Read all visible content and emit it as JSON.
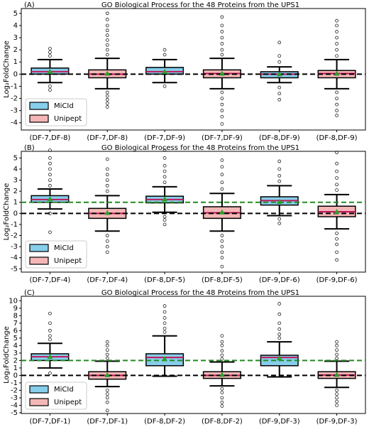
{
  "chart_data": [
    {
      "type": "box",
      "panel_label": "(A)",
      "title": "GO Biological Process for the 48 Proteins from the UPS1",
      "y_label": "Log₂FoldChange",
      "categories": [
        "(DF-7,DF-8)",
        "(DF-7,DF-8)",
        "(DF-7,DF-9)",
        "(DF-7,DF-9)",
        "(DF-8,DF-9)",
        "(DF-8,DF-9)"
      ],
      "series": [
        {
          "name": "MiCId",
          "color": "#87ceeb"
        },
        {
          "name": "Unipept",
          "color": "#f4b6b6"
        }
      ],
      "median_color": "#c2185b",
      "mean_color": "#2ca02c",
      "legend": "lower left",
      "ylim": [
        -4.6,
        5.4
      ],
      "yticks": [
        -4,
        -3,
        -2,
        -1,
        0,
        1,
        2,
        3,
        4,
        5
      ],
      "hlines": [
        {
          "value": 0,
          "color": "#000000"
        }
      ],
      "boxes": [
        {
          "series": 0,
          "whislo": -0.7,
          "q1": 0,
          "med": 0.2,
          "q3": 0.5,
          "whishi": 1.2,
          "mean": 0.2,
          "outliers": [
            1.5,
            1.8,
            2.1,
            -1.0,
            -1.3
          ]
        },
        {
          "series": 1,
          "whislo": -1.2,
          "q1": -0.3,
          "med": 0,
          "q3": 0.35,
          "whishi": 1.3,
          "mean": 0.05,
          "outliers": [
            1.6,
            2,
            2.4,
            2.8,
            3.2,
            3.6,
            4,
            4.5,
            5,
            -1.5,
            -1.8,
            -2.1,
            -2.4,
            -2.7
          ]
        },
        {
          "series": 0,
          "whislo": -0.7,
          "q1": 0,
          "med": 0.2,
          "q3": 0.55,
          "whishi": 1.2,
          "mean": 0.2,
          "outliers": [
            1.6,
            2.0,
            -1.0
          ]
        },
        {
          "series": 1,
          "whislo": -1.2,
          "q1": -0.3,
          "med": 0.05,
          "q3": 0.35,
          "whishi": 1.3,
          "mean": 0.05,
          "outliers": [
            1.6,
            2,
            2.5,
            3,
            3.5,
            4,
            4.7,
            -1.5,
            -2,
            -2.5,
            -3,
            -3.5,
            -4.1
          ]
        },
        {
          "series": 0,
          "whislo": -0.7,
          "q1": -0.3,
          "med": 0,
          "q3": 0.2,
          "whishi": 0.6,
          "mean": 0,
          "outliers": [
            1,
            1.5,
            2.6,
            -1.1,
            -1.6,
            -2.1
          ]
        },
        {
          "series": 1,
          "whislo": -1.2,
          "q1": -0.3,
          "med": 0.05,
          "q3": 0.3,
          "whishi": 1.2,
          "mean": 0.05,
          "outliers": [
            1.5,
            2,
            2.5,
            3,
            3.5,
            4,
            4.4,
            -1.5,
            -2,
            -2.5,
            -3,
            -3.4
          ]
        }
      ]
    },
    {
      "type": "box",
      "panel_label": "(B)",
      "title": "GO Biological Process for the 48 Proteins from the UPS1",
      "y_label": "Log₂FoldChange",
      "categories": [
        "(DF-7,DF-4)",
        "(DF-7,DF-4)",
        "(DF-8,DF-5)",
        "(DF-8,DF-5)",
        "(DF-9,DF-6)",
        "(DF-9,DF-6)"
      ],
      "series": [
        {
          "name": "MiCId",
          "color": "#87ceeb"
        },
        {
          "name": "Unipept",
          "color": "#f4b6b6"
        }
      ],
      "median_color": "#c2185b",
      "mean_color": "#2ca02c",
      "legend": "lower left",
      "ylim": [
        -5.3,
        5.6
      ],
      "yticks": [
        -5,
        -4,
        -3,
        -2,
        -1,
        0,
        1,
        2,
        3,
        4,
        5
      ],
      "hlines": [
        {
          "value": 0,
          "color": "#000000"
        },
        {
          "value": 1,
          "color": "#228b22"
        }
      ],
      "boxes": [
        {
          "series": 0,
          "whislo": 0.4,
          "q1": 1.0,
          "med": 1.25,
          "q3": 1.6,
          "whishi": 2.2,
          "mean": 1.3,
          "outliers": [
            2.5,
            3,
            3.5,
            4,
            4.5,
            5,
            5.7,
            0,
            -1.7
          ]
        },
        {
          "series": 1,
          "whislo": -1.6,
          "q1": -0.45,
          "med": 0,
          "q3": 0.45,
          "whishi": 1.6,
          "mean": 0.05,
          "outliers": [
            2,
            2.5,
            3,
            3.5,
            4,
            4.9,
            -2,
            -2.5,
            -3,
            -3.5
          ]
        },
        {
          "series": 0,
          "whislo": 0.1,
          "q1": 0.95,
          "med": 1.25,
          "q3": 1.55,
          "whishi": 2.4,
          "mean": 1.3,
          "outliers": [
            2.8,
            3.3,
            3.8,
            4.3,
            5,
            5.7,
            -0.3,
            -0.6,
            -1
          ]
        },
        {
          "series": 1,
          "whislo": -1.6,
          "q1": -0.45,
          "med": 0.05,
          "q3": 0.6,
          "whishi": 1.8,
          "mean": 0.1,
          "outliers": [
            2.2,
            2.8,
            3.5,
            4.2,
            4.8,
            -2,
            -2.5,
            -3,
            -3.5,
            -4,
            -4.8
          ]
        },
        {
          "series": 0,
          "whislo": -0.2,
          "q1": 0.75,
          "med": 1.15,
          "q3": 1.5,
          "whishi": 2.5,
          "mean": 1.05,
          "outliers": [
            2.9,
            3.4,
            4,
            4.7,
            -0.5,
            -0.9
          ]
        },
        {
          "series": 1,
          "whislo": -1.4,
          "q1": -0.3,
          "med": 0.15,
          "q3": 0.65,
          "whishi": 1.7,
          "mean": 0.15,
          "outliers": [
            2.1,
            2.6,
            3.2,
            3.8,
            4.5,
            5.5,
            -1.8,
            -2.3,
            -2.8,
            -3.5,
            -4.2
          ]
        }
      ]
    },
    {
      "type": "box",
      "panel_label": "(C)",
      "title": "GO Biological Process for the 48 Proteins from the UPS1",
      "y_label": "Log₂FoldChange",
      "categories": [
        "(DF-7,DF-1)",
        "(DF-7,DF-1)",
        "(DF-8,DF-2)",
        "(DF-8,DF-2)",
        "(DF-9,DF-3)",
        "(DF-9,DF-3)"
      ],
      "series": [
        {
          "name": "MiCId",
          "color": "#87ceeb"
        },
        {
          "name": "Unipept",
          "color": "#f4b6b6"
        }
      ],
      "median_color": "#c2185b",
      "mean_color": "#2ca02c",
      "legend": "lower left",
      "ylim": [
        -5.1,
        10.6
      ],
      "yticks": [
        -5,
        -4,
        -3,
        -2,
        -1,
        0,
        1,
        2,
        3,
        4,
        5,
        6,
        7,
        8,
        9,
        10
      ],
      "hlines": [
        {
          "value": 0,
          "color": "#000000"
        },
        {
          "value": 2,
          "color": "#228b22"
        }
      ],
      "boxes": [
        {
          "series": 0,
          "whislo": 1.0,
          "q1": 2.0,
          "med": 2.5,
          "q3": 2.9,
          "whishi": 4.3,
          "mean": 2.5,
          "outliers": [
            4.8,
            5.3,
            6,
            7,
            8.3,
            0.3
          ]
        },
        {
          "series": 1,
          "whislo": -1.5,
          "q1": -0.5,
          "med": 0,
          "q3": 0.5,
          "whishi": 1.9,
          "mean": 0.05,
          "outliers": [
            2.3,
            2.8,
            3.4,
            4,
            4.5,
            -2,
            -2.5,
            -3,
            -3.6,
            -4.7
          ]
        },
        {
          "series": 0,
          "whislo": -0.1,
          "q1": 1.3,
          "med": 2.4,
          "q3": 2.9,
          "whishi": 5.3,
          "mean": 2.2,
          "outliers": [
            5.8,
            6.3,
            7,
            7.7,
            8.5,
            9.3
          ]
        },
        {
          "series": 1,
          "whislo": -1.4,
          "q1": -0.4,
          "med": 0,
          "q3": 0.5,
          "whishi": 1.8,
          "mean": 0.1,
          "outliers": [
            2.2,
            2.7,
            3.3,
            4,
            4.5,
            5.3,
            -1.8,
            -2.3,
            -3,
            -3.6,
            -4.1
          ]
        },
        {
          "series": 0,
          "whislo": -0.2,
          "q1": 1.3,
          "med": 2.4,
          "q3": 2.7,
          "whishi": 4.5,
          "mean": 2.3,
          "outliers": [
            5,
            5.5,
            6.2,
            7,
            8.2,
            9.6
          ]
        },
        {
          "series": 1,
          "whislo": -1.6,
          "q1": -0.4,
          "med": 0.05,
          "q3": 0.5,
          "whishi": 1.9,
          "mean": 0.1,
          "outliers": [
            2.3,
            2.8,
            3.4,
            4,
            4.5,
            -2,
            -2.5,
            -3,
            -3.5,
            -4
          ]
        }
      ]
    }
  ]
}
